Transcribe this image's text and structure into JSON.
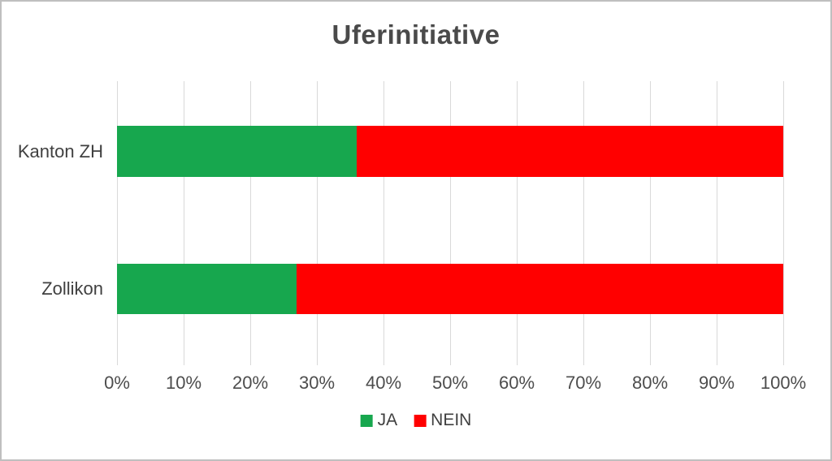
{
  "chart_data": {
    "type": "bar",
    "orientation": "horizontal",
    "stacked": true,
    "title": "Uferinitiative",
    "categories": [
      "Kanton ZH",
      "Zollikon"
    ],
    "series": [
      {
        "name": "JA",
        "color": "#17a74e",
        "values": [
          36,
          27
        ]
      },
      {
        "name": "NEIN",
        "color": "#ff0000",
        "values": [
          64,
          73
        ]
      }
    ],
    "xlabel": "",
    "ylabel": "",
    "xlim": [
      0,
      100
    ],
    "x_tick_labels": [
      "0%",
      "10%",
      "20%",
      "30%",
      "40%",
      "50%",
      "60%",
      "70%",
      "80%",
      "90%",
      "100%"
    ],
    "grid": true,
    "legend_position": "bottom"
  },
  "colors": {
    "gridline": "#d9d9d9",
    "frame_border": "#bfbfbf",
    "title_text": "#4a4a4a",
    "label_text": "#404040",
    "tick_text": "#4d4d4d",
    "background": "#ffffff"
  }
}
